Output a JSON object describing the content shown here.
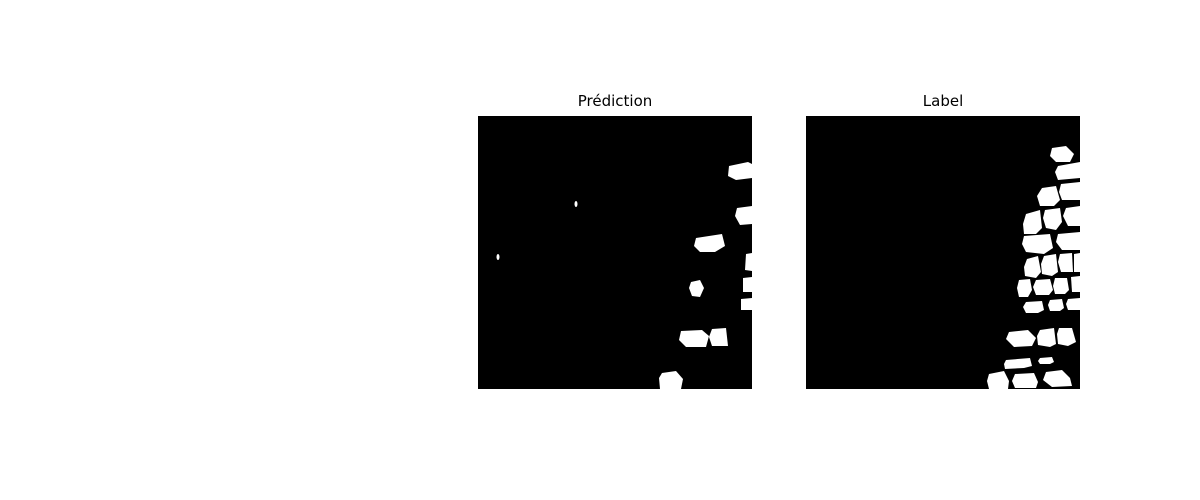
{
  "panels": {
    "prediction": {
      "title": "Prédiction"
    },
    "label": {
      "title": "Label"
    }
  },
  "colors": {
    "background": "#000000",
    "mask": "#ffffff"
  }
}
